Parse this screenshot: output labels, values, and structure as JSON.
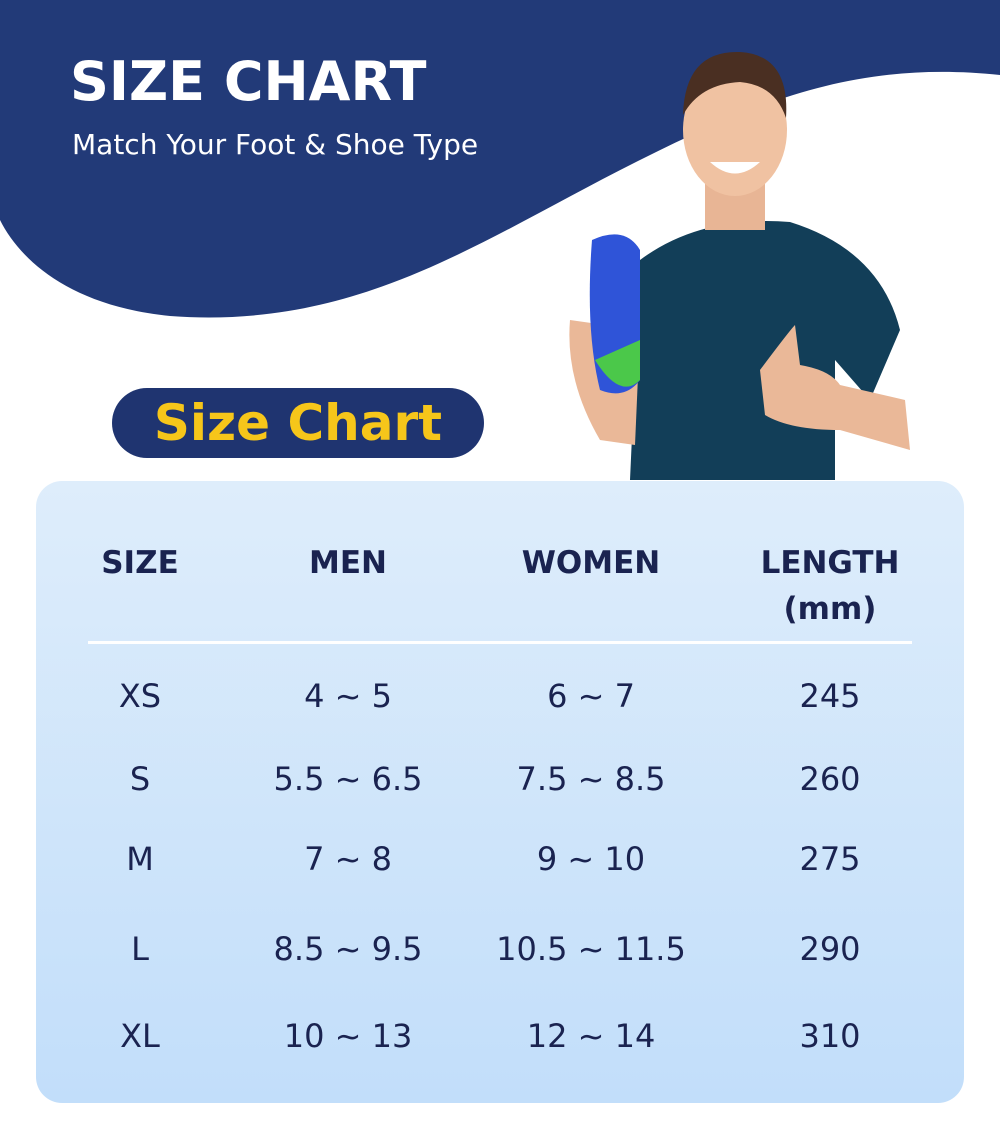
{
  "header": {
    "title": "SIZE CHART",
    "subtitle": "Match Your Foot & Shoe Type"
  },
  "badge": "Size Chart",
  "table": {
    "columns": [
      "SIZE",
      "MEN",
      "WOMEN",
      "LENGTH (mm)"
    ],
    "rows": [
      [
        "XS",
        "4 ~ 5",
        "6 ~ 7",
        245
      ],
      [
        "S",
        "5.5 ~ 6.5",
        "7.5 ~ 8.5",
        260
      ],
      [
        "M",
        "7 ~ 8",
        "9 ~ 10",
        275
      ],
      [
        "L",
        "8.5 ~ 9.5",
        "10.5 ~ 11.5",
        290
      ],
      [
        "XL",
        "10 ~ 13",
        "12 ~ 14",
        310
      ]
    ]
  }
}
